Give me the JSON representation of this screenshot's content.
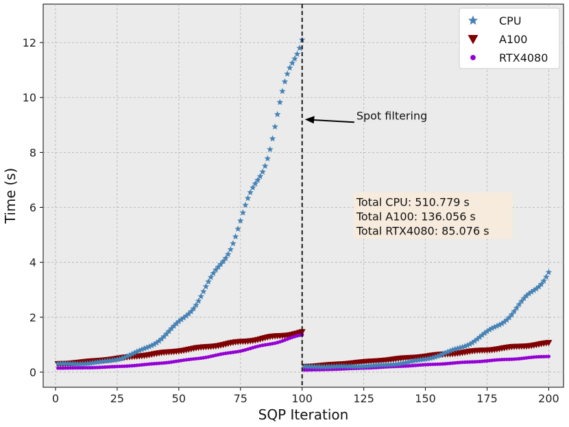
{
  "chart_data": {
    "type": "scatter",
    "title": "",
    "xlabel": "SQP Iteration",
    "ylabel": "Time (s)",
    "xlim": [
      -5,
      206
    ],
    "ylim": [
      -0.55,
      13.4
    ],
    "xticks": [
      0,
      25,
      50,
      75,
      100,
      125,
      150,
      175,
      200
    ],
    "yticks": [
      0,
      2,
      4,
      6,
      8,
      10,
      12
    ],
    "grid": true,
    "legend_position": "top-right",
    "vline": {
      "x": 100,
      "style": "dashed"
    },
    "annotation": {
      "text": "Spot filtering",
      "arrow_to": [
        100,
        9.2
      ],
      "text_at": [
        122,
        9.35
      ]
    },
    "summary_box": {
      "lines": [
        "Total CPU: 510.779 s",
        "Total A100: 136.056 s",
        "Total RTX4080: 85.076 s"
      ],
      "anchor": [
        122,
        6.2
      ]
    },
    "series": [
      {
        "name": "CPU",
        "marker": "star",
        "color": "#4682b4",
        "segments": [
          {
            "x_start": 1,
            "x_end": 100,
            "y_start": 0.3,
            "y_end": 12.6,
            "p": 3
          },
          {
            "x_start": 101,
            "x_end": 200,
            "y_start": 0.2,
            "y_end": 3.7,
            "p": 3.6
          }
        ]
      },
      {
        "name": "A100",
        "marker": "triangle-down",
        "color": "#7f0000",
        "segments": [
          {
            "x_start": 1,
            "x_end": 100,
            "y_start": 0.3,
            "y_end": 1.45,
            "p": 1.25
          },
          {
            "x_start": 101,
            "x_end": 200,
            "y_start": 0.2,
            "y_end": 1.05,
            "p": 1.15
          }
        ]
      },
      {
        "name": "RTX4080",
        "marker": "circle",
        "color": "#9400d3",
        "segments": [
          {
            "x_start": 1,
            "x_end": 100,
            "y_start": 0.15,
            "y_end": 1.35,
            "p": 2.2
          },
          {
            "x_start": 101,
            "x_end": 200,
            "y_start": 0.08,
            "y_end": 0.58,
            "p": 1.4
          }
        ]
      }
    ]
  }
}
